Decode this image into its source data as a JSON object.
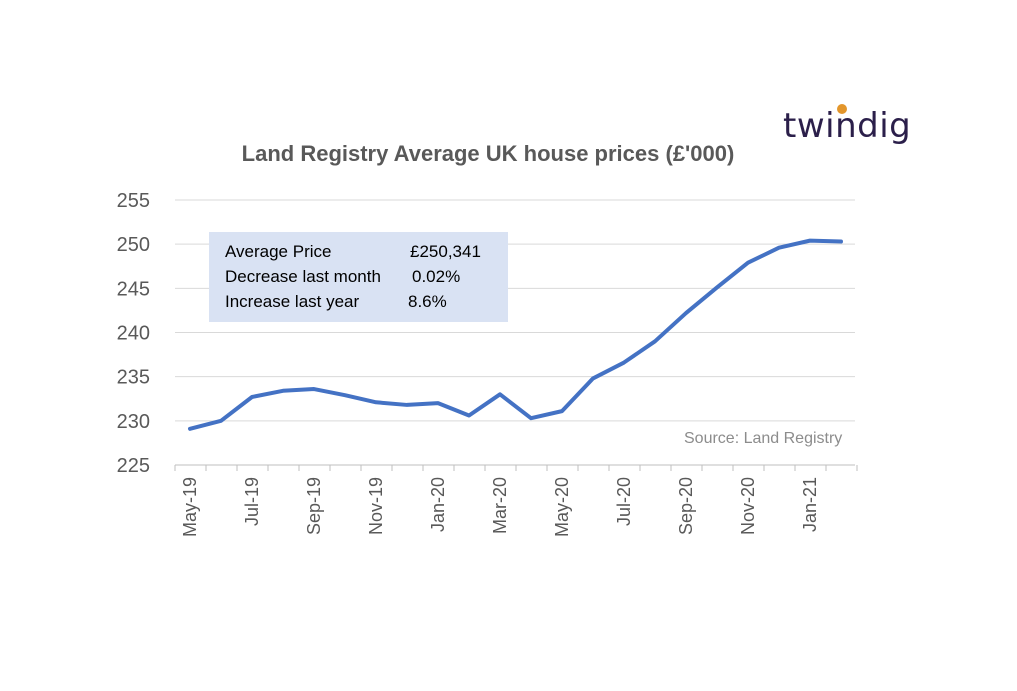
{
  "brand": {
    "name": "twindig",
    "dot_color": "#e3962b"
  },
  "chart_data": {
    "type": "line",
    "title": "Land Registry Average UK house prices (£'000)",
    "xlabel": "",
    "ylabel": "",
    "ylim": [
      225,
      255
    ],
    "yticks": [
      225,
      230,
      235,
      240,
      245,
      250,
      255
    ],
    "xtick_labels": [
      "May-19",
      "Jul-19",
      "Sep-19",
      "Nov-19",
      "Jan-20",
      "Mar-20",
      "May-20",
      "Jul-20",
      "Sep-20",
      "Nov-20",
      "Jan-21"
    ],
    "x": [
      "May-19",
      "Jun-19",
      "Jul-19",
      "Aug-19",
      "Sep-19",
      "Oct-19",
      "Nov-19",
      "Dec-19",
      "Jan-20",
      "Feb-20",
      "Mar-20",
      "Apr-20",
      "May-20",
      "Jun-20",
      "Jul-20",
      "Aug-20",
      "Sep-20",
      "Oct-20",
      "Nov-20",
      "Dec-20",
      "Jan-21",
      "Feb-21"
    ],
    "series": [
      {
        "values": [
          229.1,
          230.0,
          232.7,
          233.4,
          233.6,
          232.9,
          232.1,
          231.8,
          232.0,
          230.6,
          233.0,
          230.3,
          231.1,
          234.8,
          236.6,
          239.0,
          242.2,
          245.1,
          247.9,
          249.6,
          250.4,
          250.3
        ],
        "color": "#4472c4"
      }
    ],
    "grid": true,
    "legend": "none"
  },
  "info_box": {
    "rows": [
      {
        "label": "Average Price",
        "value": "£250,341"
      },
      {
        "label": "Decrease last month",
        "value": "0.02%"
      },
      {
        "label": "Increase last year",
        "value": "8.6%"
      }
    ],
    "background": "#d9e2f3"
  },
  "source_note": "Source: Land Registry"
}
